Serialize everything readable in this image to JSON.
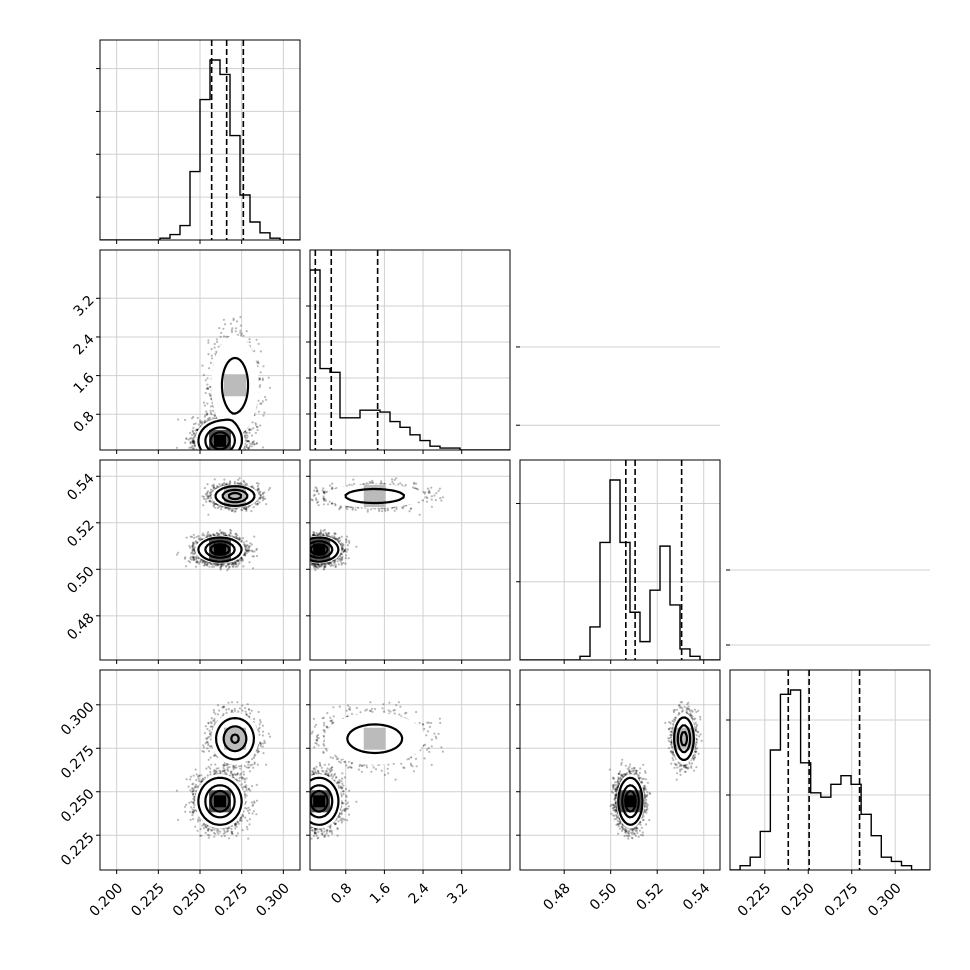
{
  "chart_data": {
    "type": "corner",
    "parameters": [
      {
        "label": "",
        "range": [
          0.19,
          0.31
        ],
        "ticks": [
          0.2,
          0.225,
          0.25,
          0.275,
          0.3
        ],
        "tick_labels": [
          "0.200",
          "0.225",
          "0.250",
          "0.275",
          "0.300"
        ],
        "quantiles": [
          0.257,
          0.266,
          0.276
        ],
        "hist": {
          "edges_start": 0.19,
          "bin_width": 0.006,
          "counts": [
            0,
            0,
            0,
            0,
            0,
            0,
            1,
            3,
            8,
            38,
            78,
            100,
            92,
            58,
            25,
            10,
            4,
            1,
            0,
            0
          ]
        }
      },
      {
        "label": "",
        "range": [
          0.06,
          4.2
        ],
        "ticks": [
          0.8,
          1.6,
          2.4,
          3.2
        ],
        "tick_labels": [
          "0.8",
          "1.6",
          "2.4",
          "3.2"
        ],
        "quantiles": [
          0.17,
          0.5,
          1.46
        ],
        "hist": {
          "edges_start": 0.06,
          "bin_width": 0.207,
          "counts": [
            95,
            43,
            41,
            17,
            17,
            21,
            21,
            20,
            15,
            12,
            8,
            5,
            2,
            1,
            1,
            0,
            0,
            0,
            0,
            0
          ]
        }
      },
      {
        "label": "",
        "range": [
          0.461,
          0.547
        ],
        "ticks": [
          0.48,
          0.5,
          0.52,
          0.54
        ],
        "tick_labels": [
          "0.48",
          "0.50",
          "0.52",
          "0.54"
        ],
        "quantiles": [
          0.5065,
          0.5105,
          0.5305
        ],
        "hist": {
          "edges_start": 0.461,
          "bin_width": 0.0043,
          "counts": [
            0,
            0,
            0,
            0,
            0,
            0,
            1,
            9,
            32,
            49,
            32,
            13,
            5,
            19,
            31,
            15,
            3,
            1,
            0,
            0
          ]
        }
      },
      {
        "label": "",
        "range": [
          0.205,
          0.32
        ],
        "ticks": [
          0.225,
          0.25,
          0.275,
          0.3
        ],
        "tick_labels": [
          "0.225",
          "0.250",
          "0.275",
          "0.300"
        ],
        "quantiles": [
          0.2385,
          0.2505,
          0.2795
        ],
        "hist": {
          "edges_start": 0.205,
          "bin_width": 0.0058,
          "counts": [
            0,
            1,
            3,
            9,
            28,
            41,
            42,
            25,
            18,
            17,
            20,
            22,
            20,
            13,
            8,
            3,
            2,
            1,
            0,
            0
          ]
        }
      }
    ],
    "hist_peaks": [
      4200,
      5000,
      2300,
      2400
    ],
    "hist_yticks": [
      1000,
      2000,
      3000,
      4000
    ],
    "modes": [
      {
        "weight": 0.6,
        "mean": [
          0.262,
          0.25,
          0.5085,
          0.2445
        ],
        "sd": [
          0.0065,
          0.2,
          0.0026,
          0.0068
        ]
      },
      {
        "weight": 0.4,
        "mean": [
          0.271,
          1.4,
          0.5315,
          0.2805
        ],
        "sd": [
          0.0062,
          0.45,
          0.0022,
          0.0065
        ]
      }
    ],
    "grid": true,
    "legend": "none"
  }
}
